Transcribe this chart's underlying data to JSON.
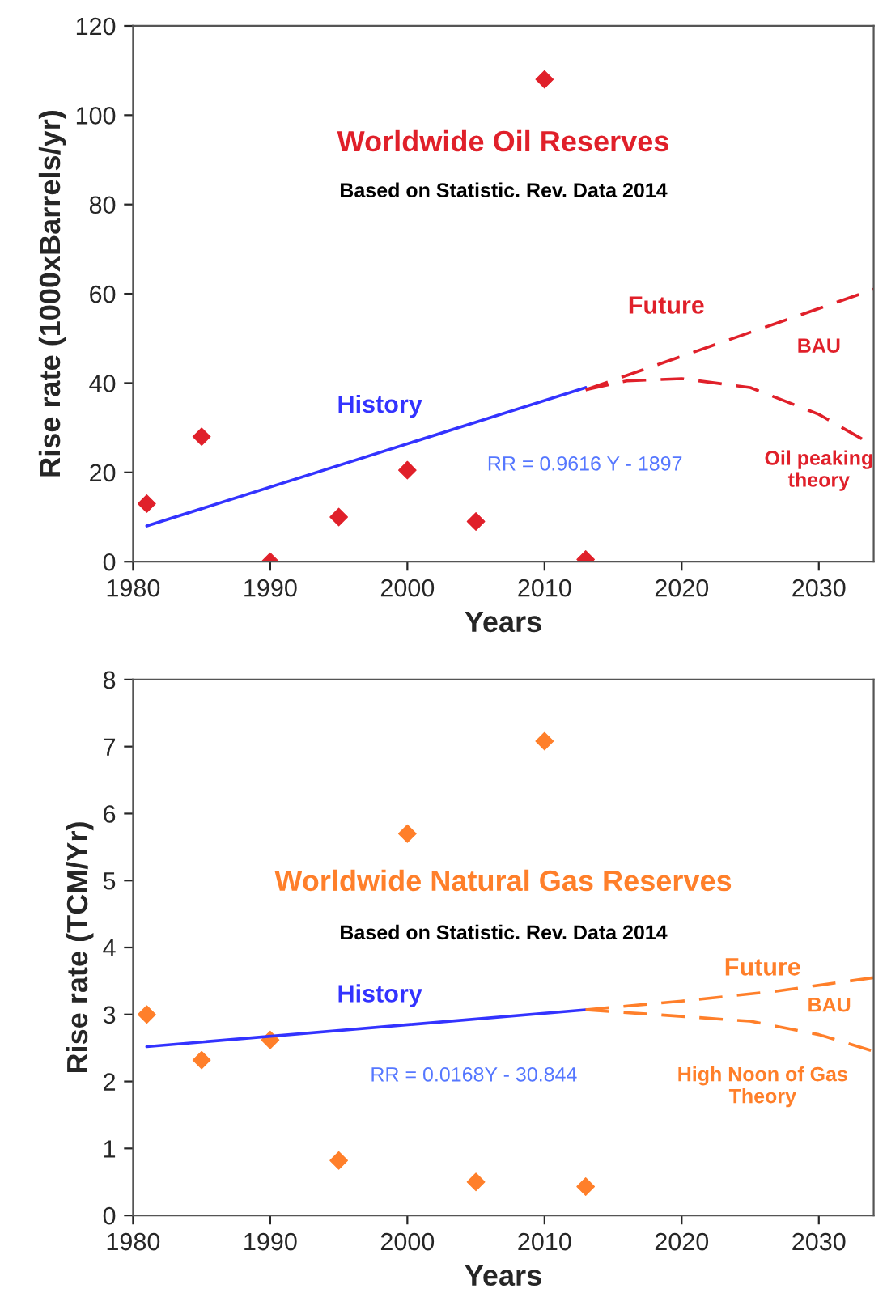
{
  "chart_data": [
    {
      "type": "scatter",
      "title": "Worldwide Oil Reserves",
      "subtitle": "Based on Statistic. Rev. Data 2014",
      "xlabel": "Years",
      "ylabel": "Rise rate (1000xBarrels/yr)",
      "xlim": [
        1980,
        2034
      ],
      "xticks": [
        1980,
        1990,
        2000,
        2010,
        2020,
        2030
      ],
      "ylim": [
        0,
        120
      ],
      "yticks": [
        0,
        20,
        40,
        60,
        80,
        100,
        120
      ],
      "grid": false,
      "legend": false,
      "series": [
        {
          "marker": "diamond",
          "color": "#e0202a",
          "x": [
            1981,
            1985,
            1990,
            1995,
            2000,
            2005,
            2010,
            2013
          ],
          "values": [
            13,
            28,
            0,
            10,
            20.5,
            9,
            108,
            0.5
          ]
        },
        {
          "type": "line",
          "marker": "none",
          "line_style": "solid",
          "color": "#3333ff",
          "x": [
            1981,
            2013
          ],
          "values": [
            8,
            39
          ]
        },
        {
          "type": "line",
          "marker": "none",
          "line_style": "dashed",
          "color": "#e0202a",
          "x": [
            2013,
            2020,
            2027,
            2034
          ],
          "values": [
            38.5,
            46,
            53.5,
            61
          ]
        },
        {
          "type": "line",
          "marker": "none",
          "line_style": "dashed",
          "color": "#e0202a",
          "x": [
            2013,
            2016,
            2020,
            2025,
            2030,
            2034
          ],
          "values": [
            38.5,
            40.5,
            41,
            39,
            33,
            26
          ]
        }
      ],
      "annotations": [
        "History",
        "RR = 0.9616 Y - 1897",
        "Future",
        "BAU",
        "Oil peaking\ntheory"
      ]
    },
    {
      "type": "scatter",
      "title": "Worldwide Natural Gas Reserves",
      "subtitle": "Based on Statistic. Rev. Data 2014",
      "xlabel": "Years",
      "ylabel": "Rise rate (TCM/Yr)",
      "xlim": [
        1980,
        2034
      ],
      "xticks": [
        1980,
        1990,
        2000,
        2010,
        2020,
        2030
      ],
      "ylim": [
        0,
        8
      ],
      "yticks": [
        0,
        1,
        2,
        3,
        4,
        5,
        6,
        7,
        8
      ],
      "grid": false,
      "legend": false,
      "series": [
        {
          "marker": "diamond",
          "color": "#ff7f2a",
          "x": [
            1981,
            1985,
            1990,
            1995,
            2000,
            2005,
            2010,
            2013
          ],
          "values": [
            3.0,
            2.32,
            2.62,
            0.82,
            5.7,
            0.5,
            7.08,
            0.43
          ]
        },
        {
          "type": "line",
          "marker": "none",
          "line_style": "solid",
          "color": "#3333ff",
          "x": [
            1981,
            2013
          ],
          "values": [
            2.52,
            3.07
          ]
        },
        {
          "type": "line",
          "marker": "none",
          "line_style": "dashed",
          "color": "#ff7f2a",
          "x": [
            2013,
            2020,
            2027,
            2034
          ],
          "values": [
            3.07,
            3.2,
            3.35,
            3.55
          ]
        },
        {
          "type": "line",
          "marker": "none",
          "line_style": "dashed",
          "color": "#ff7f2a",
          "x": [
            2013,
            2018,
            2025,
            2030,
            2034
          ],
          "values": [
            3.07,
            3.0,
            2.9,
            2.7,
            2.45
          ]
        }
      ],
      "annotations": [
        "History",
        "RR = 0.0168Y - 30.844",
        "Future",
        "BAU",
        "High Noon of Gas\nTheory"
      ]
    }
  ]
}
